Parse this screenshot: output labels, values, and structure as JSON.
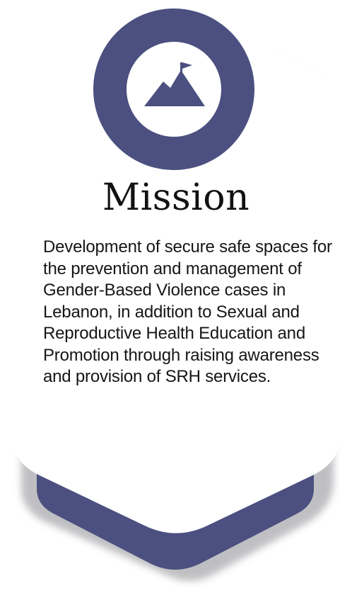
{
  "card": {
    "title": "Mission",
    "body": "Development of secure safe spaces for the prevention and management of Gender-Based Violence cases in Lebanon, in addition to Sexual and Reproductive Health Education and Promotion through raising awareness and provision of SRH services."
  },
  "icon": {
    "name": "mountain-flag-icon"
  },
  "colors": {
    "accent": "#4b5080",
    "card": "#ffffff",
    "shadow": "#b9b9bd",
    "text": "#161616"
  }
}
